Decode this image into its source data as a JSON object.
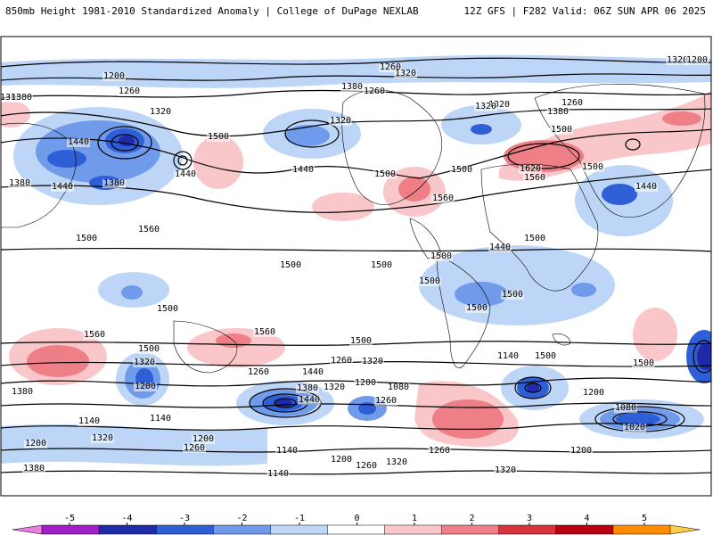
{
  "header": {
    "title": "850mb Height 1981-2010 Standardized Anomaly | College of DuPage NEXLAB",
    "run_info": "12Z GFS | F282 Valid: 06Z SUN APR 06 2025"
  },
  "colorbar": {
    "ticks": [
      "-5",
      "-4",
      "-3",
      "-2",
      "-1",
      "0",
      "1",
      "2",
      "3",
      "4",
      "5"
    ],
    "colors": [
      "#e87ee0",
      "#a21fc7",
      "#1f2aa8",
      "#2f5fd6",
      "#6f9bea",
      "#bdd5f7",
      "#ffffff",
      "#f9c6c9",
      "#ee7f86",
      "#d9333c",
      "#b80010",
      "#ff8c00",
      "#ffcc44"
    ]
  },
  "contour_labels": [
    "1200",
    "1260",
    "1320",
    "1260",
    "1200",
    "1380",
    "1260",
    "1320",
    "1380",
    "1320",
    "1380",
    "1320",
    "1260",
    "1380",
    "1320",
    "1320",
    "1500",
    "1440",
    "1500",
    "1440",
    "1440",
    "1500",
    "1620",
    "1560",
    "1500",
    "1440",
    "1380",
    "1500",
    "1560",
    "1440",
    "1380",
    "1500",
    "1560",
    "1440",
    "1500",
    "1500",
    "1500",
    "1500",
    "1500",
    "1500",
    "1500",
    "1500",
    "1560",
    "1560",
    "1500",
    "1500",
    "1500",
    "1500",
    "1440",
    "1380",
    "1320",
    "1260",
    "1200",
    "1380",
    "1320",
    "1200",
    "1440",
    "1260",
    "1140",
    "1080",
    "1320",
    "1260",
    "1200",
    "1140",
    "1080",
    "1020",
    "1140",
    "1200",
    "1260",
    "1200",
    "1140",
    "1320",
    "1260",
    "1320",
    "1260",
    "1200",
    "1200",
    "1140",
    "1320",
    "1380"
  ]
}
